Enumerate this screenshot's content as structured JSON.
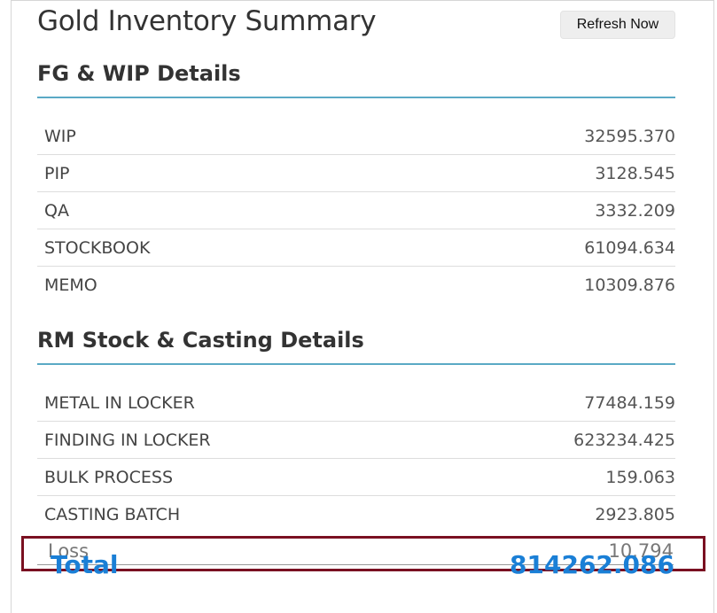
{
  "header": {
    "title": "Gold Inventory Summary",
    "refresh_label": "Refresh Now"
  },
  "fg_wip": {
    "title": "FG & WIP Details",
    "rows": [
      {
        "label": "WIP",
        "value": "32595.370"
      },
      {
        "label": "PIP",
        "value": "3128.545"
      },
      {
        "label": "QA",
        "value": "3332.209"
      },
      {
        "label": "STOCKBOOK",
        "value": "61094.634"
      },
      {
        "label": "MEMO",
        "value": "10309.876"
      }
    ]
  },
  "rm_stock": {
    "title": "RM Stock & Casting Details",
    "rows": [
      {
        "label": "METAL IN LOCKER",
        "value": "77484.159"
      },
      {
        "label": "FINDING IN LOCKER",
        "value": "623234.425"
      },
      {
        "label": "BULK PROCESS",
        "value": "159.063"
      },
      {
        "label": "CASTING BATCH",
        "value": "2923.805"
      }
    ]
  },
  "loss": {
    "label": "Loss",
    "value": "10.794"
  },
  "total": {
    "label": "Total",
    "value": "814262.086"
  },
  "colors": {
    "accent_rule": "#5aa9c5",
    "total_blue": "#1a7fd6",
    "highlight_border": "#7a1021"
  }
}
